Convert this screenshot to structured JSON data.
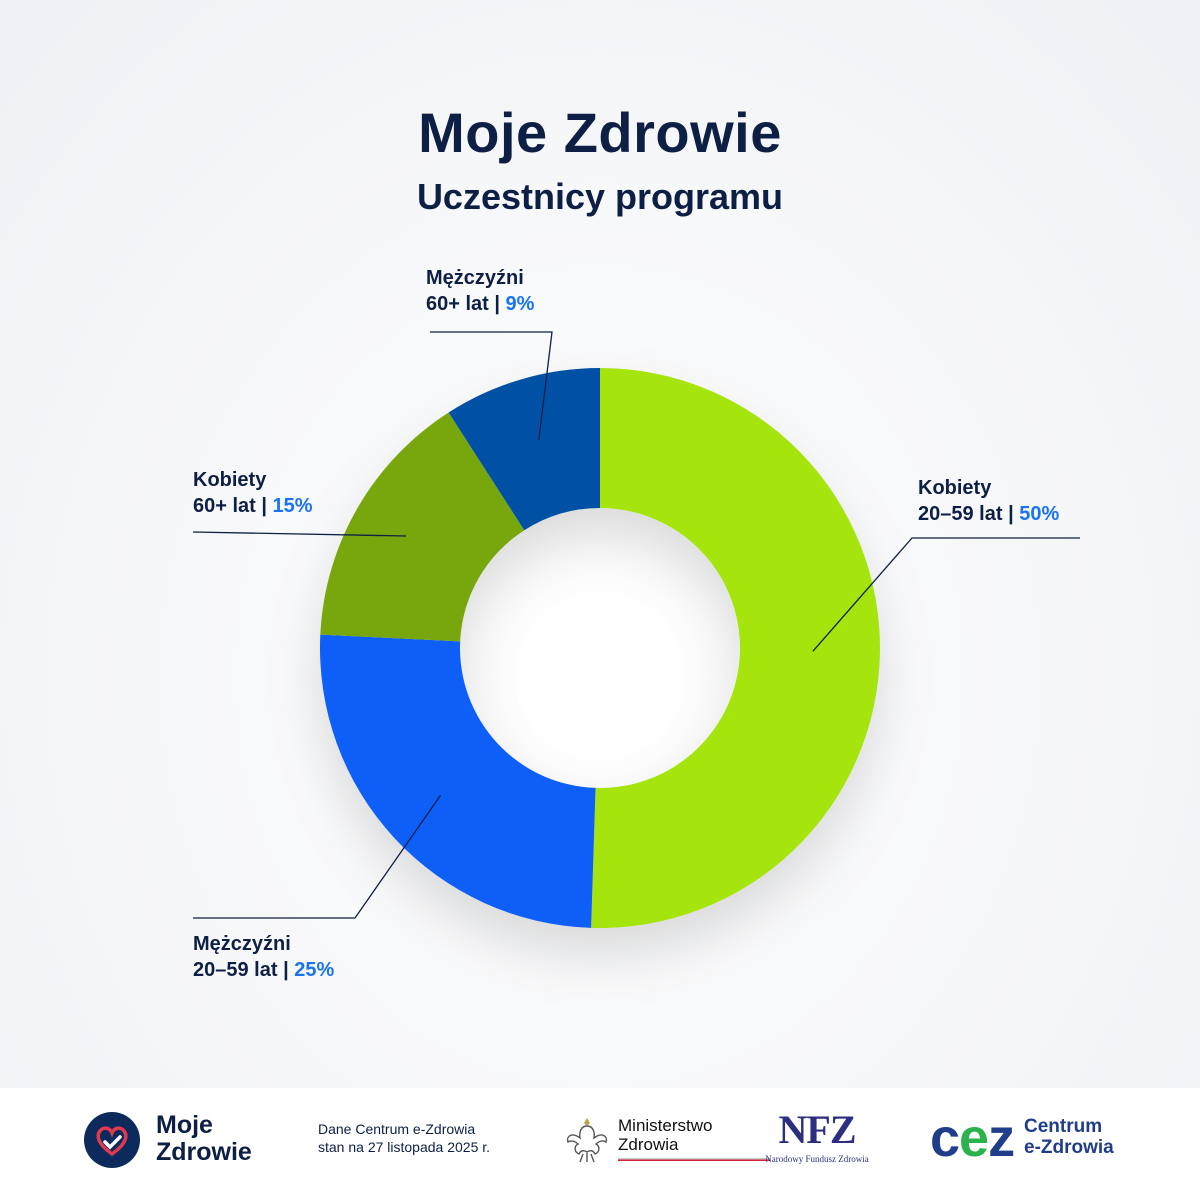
{
  "header": {
    "title": "Moje Zdrowie",
    "subtitle": "Uczestnicy programu"
  },
  "colors": {
    "navy": "#0d1f44",
    "percent": "#1a73f0"
  },
  "chart_data": {
    "type": "pie",
    "variant": "donut",
    "title": "Moje Zdrowie",
    "subtitle": "Uczestnicy programu",
    "slices": [
      {
        "line1": "Kobiety",
        "line2": "20–59 lat",
        "pct": "50%",
        "value": 50,
        "color": "#a5e40f"
      },
      {
        "line1": "Mężczyźni",
        "line2": "20–59 lat",
        "pct": "25%",
        "value": 25,
        "color": "#0a5ef7"
      },
      {
        "line1": "Kobiety",
        "line2": "60+ lat",
        "pct": "15%",
        "value": 15,
        "color": "#77a60c"
      },
      {
        "line1": "Mężczyźni",
        "line2": "60+ lat",
        "pct": "9%",
        "value": 9,
        "color": "#0451a6"
      }
    ]
  },
  "footer": {
    "moje_zdrowie_line1": "Moje",
    "moje_zdrowie_line2": "Zdrowie",
    "data_source_line1": "Dane Centrum e-Zdrowia",
    "data_source_line2": "stan na 27 listopada 2025 r.",
    "ministry_line1": "Ministerstwo",
    "ministry_line2": "Zdrowia",
    "nfz_mark": "NFZ",
    "nfz_name": "Narodowy Fundusz Zdrowia",
    "cez_mark": "cez",
    "cez_line1": "Centrum",
    "cez_line2": "e-Zdrowia"
  }
}
